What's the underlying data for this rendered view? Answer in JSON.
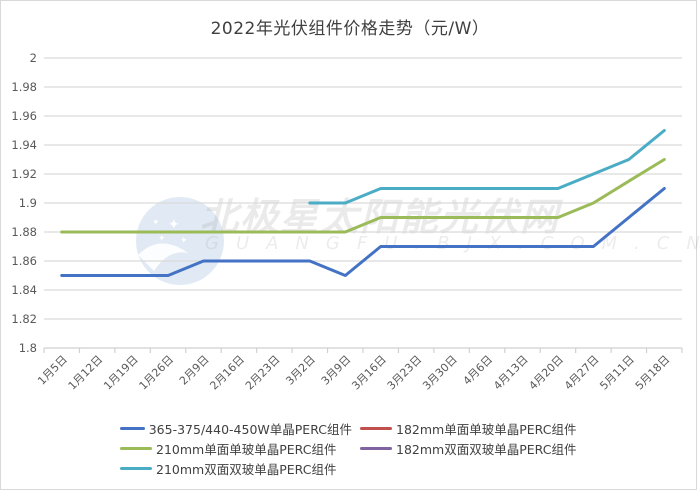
{
  "chart_data": {
    "type": "line",
    "title": "2022年光伏组件价格走势（元/W）",
    "xlabel": "",
    "ylabel": "",
    "ylim": [
      1.8,
      2.0
    ],
    "y_ticks": [
      2,
      1.98,
      1.96,
      1.94,
      1.92,
      1.9,
      1.88,
      1.86,
      1.84,
      1.82,
      1.8
    ],
    "grid": true,
    "legend_position": "bottom",
    "categories": [
      "1月5日",
      "1月12日",
      "1月19日",
      "1月26日",
      "2月9日",
      "2月16日",
      "2月23日",
      "3月2日",
      "3月9日",
      "3月16日",
      "3月23日",
      "3月30日",
      "4月6日",
      "4月13日",
      "4月20日",
      "4月27日",
      "5月11日",
      "5月18日"
    ],
    "series": [
      {
        "name": "365-375/440-450W单晶PERC组件",
        "color": "#4472c4",
        "values": [
          1.85,
          1.85,
          1.85,
          1.85,
          1.86,
          1.86,
          1.86,
          1.86,
          1.85,
          1.87,
          1.87,
          1.87,
          1.87,
          1.87,
          1.87,
          1.87,
          1.89,
          1.91
        ]
      },
      {
        "name": "182mm单面单玻单晶PERC组件",
        "color": "#c0504d",
        "values": [
          null,
          null,
          null,
          null,
          null,
          null,
          null,
          null,
          null,
          null,
          null,
          null,
          null,
          null,
          null,
          null,
          null,
          null
        ]
      },
      {
        "name": "210mm单面单玻单晶PERC组件",
        "color": "#9bbb59",
        "values": [
          1.88,
          1.88,
          1.88,
          1.88,
          1.88,
          1.88,
          1.88,
          1.88,
          1.88,
          1.89,
          1.89,
          1.89,
          1.89,
          1.89,
          1.89,
          1.9,
          1.915,
          1.93
        ]
      },
      {
        "name": "182mm双面双玻单晶PERC组件",
        "color": "#8064a2",
        "values": [
          null,
          null,
          null,
          null,
          null,
          null,
          null,
          null,
          null,
          null,
          null,
          null,
          null,
          null,
          null,
          null,
          null,
          null
        ]
      },
      {
        "name": "210mm双面双玻单晶PERC组件",
        "color": "#4bacc6",
        "values": [
          null,
          null,
          null,
          null,
          null,
          null,
          null,
          1.9,
          1.9,
          1.91,
          1.91,
          1.91,
          1.91,
          1.91,
          1.91,
          1.92,
          1.93,
          1.95
        ]
      }
    ]
  },
  "watermark": {
    "text": "北极星太阳能光伏网",
    "subtext": "GUANGFU.BJX.COM.CN"
  }
}
